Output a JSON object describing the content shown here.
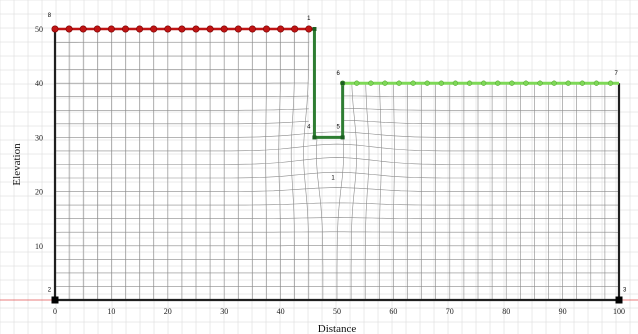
{
  "diagram": {
    "x_axis_label": "Distance",
    "y_axis_label": "Elevation",
    "x_ticks": [
      "0",
      "10",
      "20",
      "30",
      "40",
      "50",
      "60",
      "70",
      "80",
      "90",
      "100"
    ],
    "y_ticks": [
      "10",
      "20",
      "30",
      "40",
      "50"
    ],
    "x_range": [
      0,
      100
    ],
    "y_range": [
      0,
      50
    ],
    "colors": {
      "grid": "#d6d6d6",
      "mesh": "#8a8a8a",
      "boundary": "#1f1f1f",
      "top_left_boundary": "#c01414",
      "step_boundary": "#2e7d32",
      "right_top_boundary": "#7ed957",
      "axis_line": "#e05050"
    },
    "geometry": {
      "left_top_y": 50,
      "step_x_left": 46,
      "step_x_right": 51,
      "step_bottom_y": 30,
      "right_top_y": 40,
      "right_x": 100
    },
    "node_labels": [
      {
        "text": "8",
        "x": -1,
        "y": 52.2
      },
      {
        "text": "1",
        "x": 45,
        "y": 51.7
      },
      {
        "text": "6",
        "x": 50.2,
        "y": 41.5
      },
      {
        "text": "7",
        "x": 99.5,
        "y": 41.5
      },
      {
        "text": "4",
        "x": 45,
        "y": 31.6
      },
      {
        "text": "5",
        "x": 50.2,
        "y": 31.6
      },
      {
        "text": "1",
        "x": 49.3,
        "y": 22.2
      },
      {
        "text": "2",
        "x": -1,
        "y": 1.6
      },
      {
        "text": "3",
        "x": 101,
        "y": 1.6
      }
    ]
  }
}
